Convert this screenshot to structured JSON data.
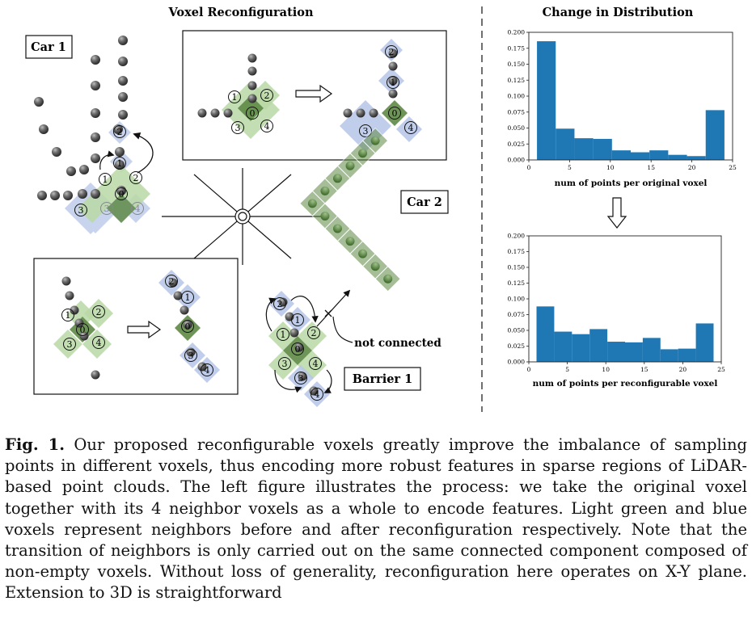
{
  "titles": {
    "left": "Voxel Reconfiguration",
    "right": "Change in Distribution"
  },
  "labels": {
    "car1": "Car 1",
    "car2": "Car 2",
    "barrier1": "Barrier 1",
    "not_connected": "not connected"
  },
  "neighbor_numbers": [
    "0",
    "1",
    "2",
    "3",
    "4"
  ],
  "colors": {
    "green": "#b9d8a4",
    "dark_green": "#5e8a45",
    "blue": "#b6c6e8",
    "bar": "#1f77b4"
  },
  "chart_data": [
    {
      "type": "bar",
      "xlabel": "num of points per original voxel",
      "ylabel": "",
      "title": "",
      "xlim": [
        0,
        25
      ],
      "ylim": [
        0,
        0.2
      ],
      "yticks": [
        "0.000",
        "0.025",
        "0.050",
        "0.075",
        "0.100",
        "0.125",
        "0.150",
        "0.175",
        "0.200"
      ],
      "xticks": [
        "0",
        "5",
        "10",
        "15",
        "20",
        "25"
      ],
      "bin_edges": [
        1,
        3.3,
        5.6,
        7.9,
        10.2,
        12.5,
        14.8,
        17.1,
        19.4,
        21.7,
        24
      ],
      "values": [
        0.186,
        0.049,
        0.034,
        0.033,
        0.015,
        0.012,
        0.015,
        0.008,
        0.006,
        0.078
      ]
    },
    {
      "type": "bar",
      "xlabel": "num of points per reconfigurable voxel",
      "ylabel": "",
      "title": "",
      "xlim": [
        0,
        25
      ],
      "ylim": [
        0,
        0.2
      ],
      "yticks": [
        "0.000",
        "0.025",
        "0.050",
        "0.075",
        "0.100",
        "0.125",
        "0.150",
        "0.175",
        "0.200"
      ],
      "xticks": [
        "0",
        "5",
        "10",
        "15",
        "20",
        "25"
      ],
      "bin_edges": [
        1,
        3.3,
        5.6,
        7.9,
        10.2,
        12.5,
        14.8,
        17.1,
        19.4,
        21.7,
        24
      ],
      "values": [
        0.088,
        0.048,
        0.044,
        0.052,
        0.032,
        0.031,
        0.038,
        0.02,
        0.021,
        0.061
      ]
    }
  ],
  "caption": {
    "label": "Fig. 1.",
    "text": "Our proposed reconfigurable voxels greatly improve the imbalance of sampling points in different voxels, thus encoding more robust features in sparse regions of LiDAR-based point clouds. The left figure illustrates the process: we take the original voxel together with its 4 neighbor voxels as a whole to encode features. Light green and blue voxels represent neighbors before and after reconfiguration respectively. Note that the transition of neighbors is only carried out on the same connected component composed of non-empty voxels. Without loss of generality, reconfiguration here operates on X-Y plane. Extension to 3D is straightforward"
  }
}
